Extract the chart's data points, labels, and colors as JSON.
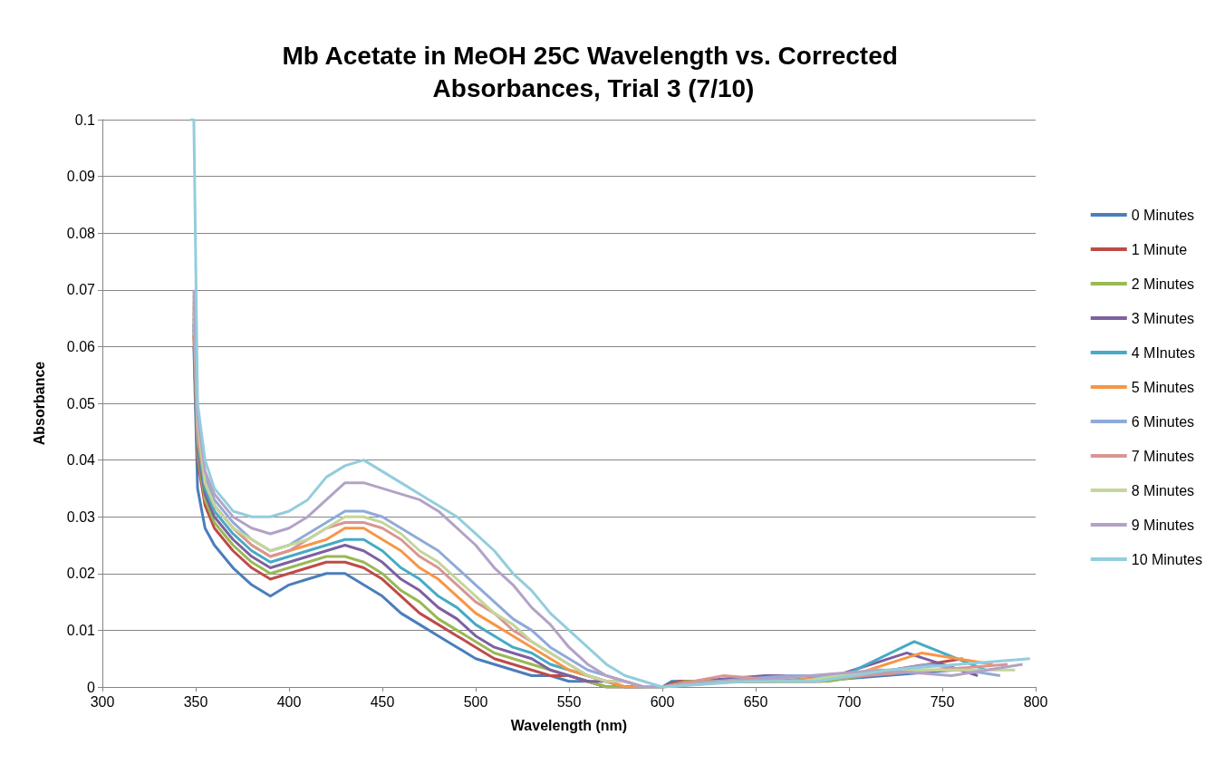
{
  "chart_data": {
    "type": "line",
    "title": "Mb Acetate in MeOH 25C Wavelength vs. Corrected Absorbances, Trial 3 (7/10)",
    "xlabel": "Wavelength (nm)",
    "ylabel": "Absorbance",
    "xlim": [
      300,
      800
    ],
    "xticks": [
      300,
      350,
      400,
      450,
      500,
      550,
      600,
      650,
      700,
      750,
      800
    ],
    "ylim": [
      0,
      0.1
    ],
    "yticks": [
      0,
      0.01,
      0.02,
      0.03,
      0.04,
      0.05,
      0.06,
      0.07,
      0.08,
      0.09,
      0.1
    ],
    "grid": "y",
    "legend": "right",
    "marker": "none",
    "line_style": "solid",
    "series": [
      {
        "name": "0 Minutes",
        "color": "#4a7ebb",
        "x": [
          349,
          351,
          355,
          360,
          370,
          380,
          390,
          400,
          410,
          420,
          430,
          440,
          450,
          460,
          470,
          480,
          490,
          500,
          510,
          520,
          530,
          540,
          550,
          560,
          570,
          580,
          590,
          600,
          605,
          643,
          681,
          719,
          757
        ],
        "values": [
          0.06,
          0.035,
          0.028,
          0.025,
          0.021,
          0.018,
          0.016,
          0.018,
          0.019,
          0.02,
          0.02,
          0.018,
          0.016,
          0.013,
          0.011,
          0.009,
          0.007,
          0.005,
          0.004,
          0.003,
          0.002,
          0.002,
          0.001,
          0.001,
          0,
          0,
          0,
          0,
          0.001,
          0.001,
          0.001,
          0.002,
          0.003
        ]
      },
      {
        "name": "1 Minute",
        "color": "#be4b48",
        "x": [
          349,
          351,
          355,
          360,
          370,
          380,
          390,
          400,
          410,
          420,
          430,
          440,
          450,
          460,
          470,
          480,
          490,
          500,
          510,
          520,
          530,
          540,
          550,
          560,
          570,
          580,
          590,
          600,
          609,
          647,
          685,
          723,
          761
        ],
        "values": [
          0.062,
          0.04,
          0.032,
          0.028,
          0.024,
          0.021,
          0.019,
          0.02,
          0.021,
          0.022,
          0.022,
          0.021,
          0.019,
          0.016,
          0.013,
          0.011,
          0.009,
          0.007,
          0.005,
          0.004,
          0.003,
          0.002,
          0.002,
          0.001,
          0,
          0,
          0,
          0,
          0.001,
          0.001,
          0.001,
          0.003,
          0.005
        ]
      },
      {
        "name": "2 Minutes",
        "color": "#98b954",
        "x": [
          349,
          351,
          355,
          360,
          370,
          380,
          390,
          400,
          410,
          420,
          430,
          440,
          450,
          460,
          470,
          480,
          490,
          500,
          510,
          520,
          530,
          540,
          550,
          560,
          570,
          580,
          590,
          600,
          613,
          651,
          689,
          727,
          765
        ],
        "values": [
          0.063,
          0.041,
          0.033,
          0.029,
          0.025,
          0.022,
          0.02,
          0.021,
          0.022,
          0.023,
          0.023,
          0.022,
          0.02,
          0.017,
          0.015,
          0.012,
          0.01,
          0.008,
          0.006,
          0.005,
          0.004,
          0.003,
          0.002,
          0.001,
          0,
          0,
          0,
          0,
          0.001,
          0.001,
          0.001,
          0.003,
          0.003
        ]
      },
      {
        "name": "3 Minutes",
        "color": "#7d60a0",
        "x": [
          349,
          351,
          355,
          360,
          370,
          380,
          390,
          400,
          410,
          420,
          430,
          440,
          450,
          460,
          470,
          480,
          490,
          500,
          510,
          520,
          530,
          540,
          550,
          560,
          570,
          580,
          590,
          600,
          617,
          655,
          693,
          731,
          769
        ],
        "values": [
          0.064,
          0.042,
          0.034,
          0.03,
          0.026,
          0.023,
          0.021,
          0.022,
          0.023,
          0.024,
          0.025,
          0.024,
          0.022,
          0.019,
          0.017,
          0.014,
          0.012,
          0.009,
          0.007,
          0.006,
          0.005,
          0.003,
          0.002,
          0.001,
          0.001,
          0,
          0,
          0,
          0.001,
          0.002,
          0.002,
          0.006,
          0.002
        ]
      },
      {
        "name": "4 MInutes",
        "color": "#46aac5",
        "x": [
          349,
          351,
          355,
          360,
          370,
          380,
          390,
          400,
          410,
          420,
          430,
          440,
          450,
          460,
          470,
          480,
          490,
          500,
          510,
          520,
          530,
          540,
          550,
          560,
          570,
          580,
          590,
          600,
          621,
          659,
          697,
          735,
          773
        ],
        "values": [
          0.065,
          0.043,
          0.035,
          0.031,
          0.027,
          0.024,
          0.022,
          0.023,
          0.024,
          0.025,
          0.026,
          0.026,
          0.024,
          0.021,
          0.019,
          0.016,
          0.014,
          0.011,
          0.009,
          0.007,
          0.006,
          0.004,
          0.003,
          0.002,
          0.001,
          0,
          0,
          0,
          0.001,
          0.001,
          0.002,
          0.008,
          0.003
        ]
      },
      {
        "name": "5 Minutes",
        "color": "#f79646",
        "x": [
          349,
          351,
          355,
          360,
          370,
          380,
          390,
          400,
          410,
          420,
          430,
          440,
          450,
          460,
          470,
          480,
          490,
          500,
          510,
          520,
          530,
          540,
          550,
          560,
          570,
          580,
          590,
          600,
          625,
          663,
          701,
          739,
          777
        ],
        "values": [
          0.066,
          0.044,
          0.036,
          0.032,
          0.028,
          0.025,
          0.023,
          0.024,
          0.025,
          0.026,
          0.028,
          0.028,
          0.026,
          0.024,
          0.021,
          0.019,
          0.016,
          0.013,
          0.011,
          0.009,
          0.007,
          0.005,
          0.003,
          0.002,
          0.001,
          0,
          0,
          0,
          0.001,
          0.001,
          0.002,
          0.006,
          0.004
        ]
      },
      {
        "name": "6 Minutes",
        "color": "#8faad9",
        "x": [
          349,
          351,
          355,
          360,
          370,
          380,
          390,
          400,
          410,
          420,
          430,
          440,
          450,
          460,
          470,
          480,
          490,
          500,
          510,
          520,
          530,
          540,
          550,
          560,
          570,
          580,
          590,
          600,
          629,
          667,
          705,
          743,
          781
        ],
        "values": [
          0.067,
          0.045,
          0.037,
          0.033,
          0.029,
          0.026,
          0.024,
          0.025,
          0.027,
          0.029,
          0.031,
          0.031,
          0.03,
          0.028,
          0.026,
          0.024,
          0.021,
          0.018,
          0.015,
          0.012,
          0.01,
          0.007,
          0.005,
          0.003,
          0.002,
          0.001,
          0,
          0,
          0.001,
          0.002,
          0.002,
          0.004,
          0.002
        ]
      },
      {
        "name": "7 Minutes",
        "color": "#d99694",
        "x": [
          349,
          351,
          355,
          360,
          370,
          380,
          390,
          400,
          410,
          420,
          430,
          440,
          450,
          460,
          470,
          480,
          490,
          500,
          510,
          520,
          530,
          540,
          550,
          560,
          570,
          580,
          590,
          600,
          633,
          671,
          709,
          747,
          785
        ],
        "values": [
          0.068,
          0.046,
          0.036,
          0.032,
          0.028,
          0.025,
          0.023,
          0.024,
          0.026,
          0.028,
          0.029,
          0.029,
          0.028,
          0.026,
          0.023,
          0.021,
          0.018,
          0.015,
          0.013,
          0.01,
          0.008,
          0.006,
          0.004,
          0.002,
          0.001,
          0.001,
          0,
          0,
          0.002,
          0.001,
          0.002,
          0.003,
          0.004
        ]
      },
      {
        "name": "8 Minutes",
        "color": "#c3d69b",
        "x": [
          349,
          351,
          355,
          360,
          370,
          380,
          390,
          400,
          410,
          420,
          430,
          440,
          450,
          460,
          470,
          480,
          490,
          500,
          510,
          520,
          530,
          540,
          550,
          560,
          570,
          580,
          590,
          600,
          637,
          675,
          713,
          751,
          789
        ],
        "values": [
          0.069,
          0.047,
          0.036,
          0.032,
          0.028,
          0.026,
          0.024,
          0.025,
          0.026,
          0.028,
          0.03,
          0.03,
          0.029,
          0.027,
          0.024,
          0.022,
          0.019,
          0.016,
          0.013,
          0.011,
          0.008,
          0.006,
          0.004,
          0.002,
          0.001,
          0.001,
          0,
          0,
          0.001,
          0.001,
          0.003,
          0.003,
          0.003
        ]
      },
      {
        "name": "9 Minutes",
        "color": "#b3a2c7",
        "x": [
          349,
          351,
          355,
          360,
          370,
          380,
          390,
          400,
          410,
          420,
          430,
          440,
          450,
          460,
          470,
          480,
          490,
          500,
          510,
          520,
          530,
          540,
          550,
          560,
          570,
          580,
          590,
          600,
          641,
          679,
          717,
          755,
          793
        ],
        "values": [
          0.07,
          0.048,
          0.038,
          0.034,
          0.03,
          0.028,
          0.027,
          0.028,
          0.03,
          0.033,
          0.036,
          0.036,
          0.035,
          0.034,
          0.033,
          0.031,
          0.028,
          0.025,
          0.021,
          0.018,
          0.014,
          0.011,
          0.007,
          0.004,
          0.002,
          0.001,
          0,
          0,
          0.001,
          0.002,
          0.003,
          0.002,
          0.004
        ]
      },
      {
        "name": "10 Minutes",
        "color": "#93cddd",
        "x": [
          347,
          349,
          351,
          355,
          360,
          370,
          380,
          390,
          400,
          410,
          420,
          430,
          440,
          450,
          460,
          470,
          480,
          490,
          500,
          510,
          520,
          530,
          540,
          550,
          560,
          570,
          580,
          590,
          600,
          645,
          683,
          721,
          759,
          797
        ],
        "values": [
          0.1,
          0.1,
          0.05,
          0.04,
          0.035,
          0.031,
          0.03,
          0.03,
          0.031,
          0.033,
          0.037,
          0.039,
          0.04,
          0.038,
          0.036,
          0.034,
          0.032,
          0.03,
          0.027,
          0.024,
          0.02,
          0.017,
          0.013,
          0.01,
          0.007,
          0.004,
          0.002,
          0.001,
          0,
          0.001,
          0.001,
          0.003,
          0.004,
          0.005
        ]
      }
    ]
  }
}
